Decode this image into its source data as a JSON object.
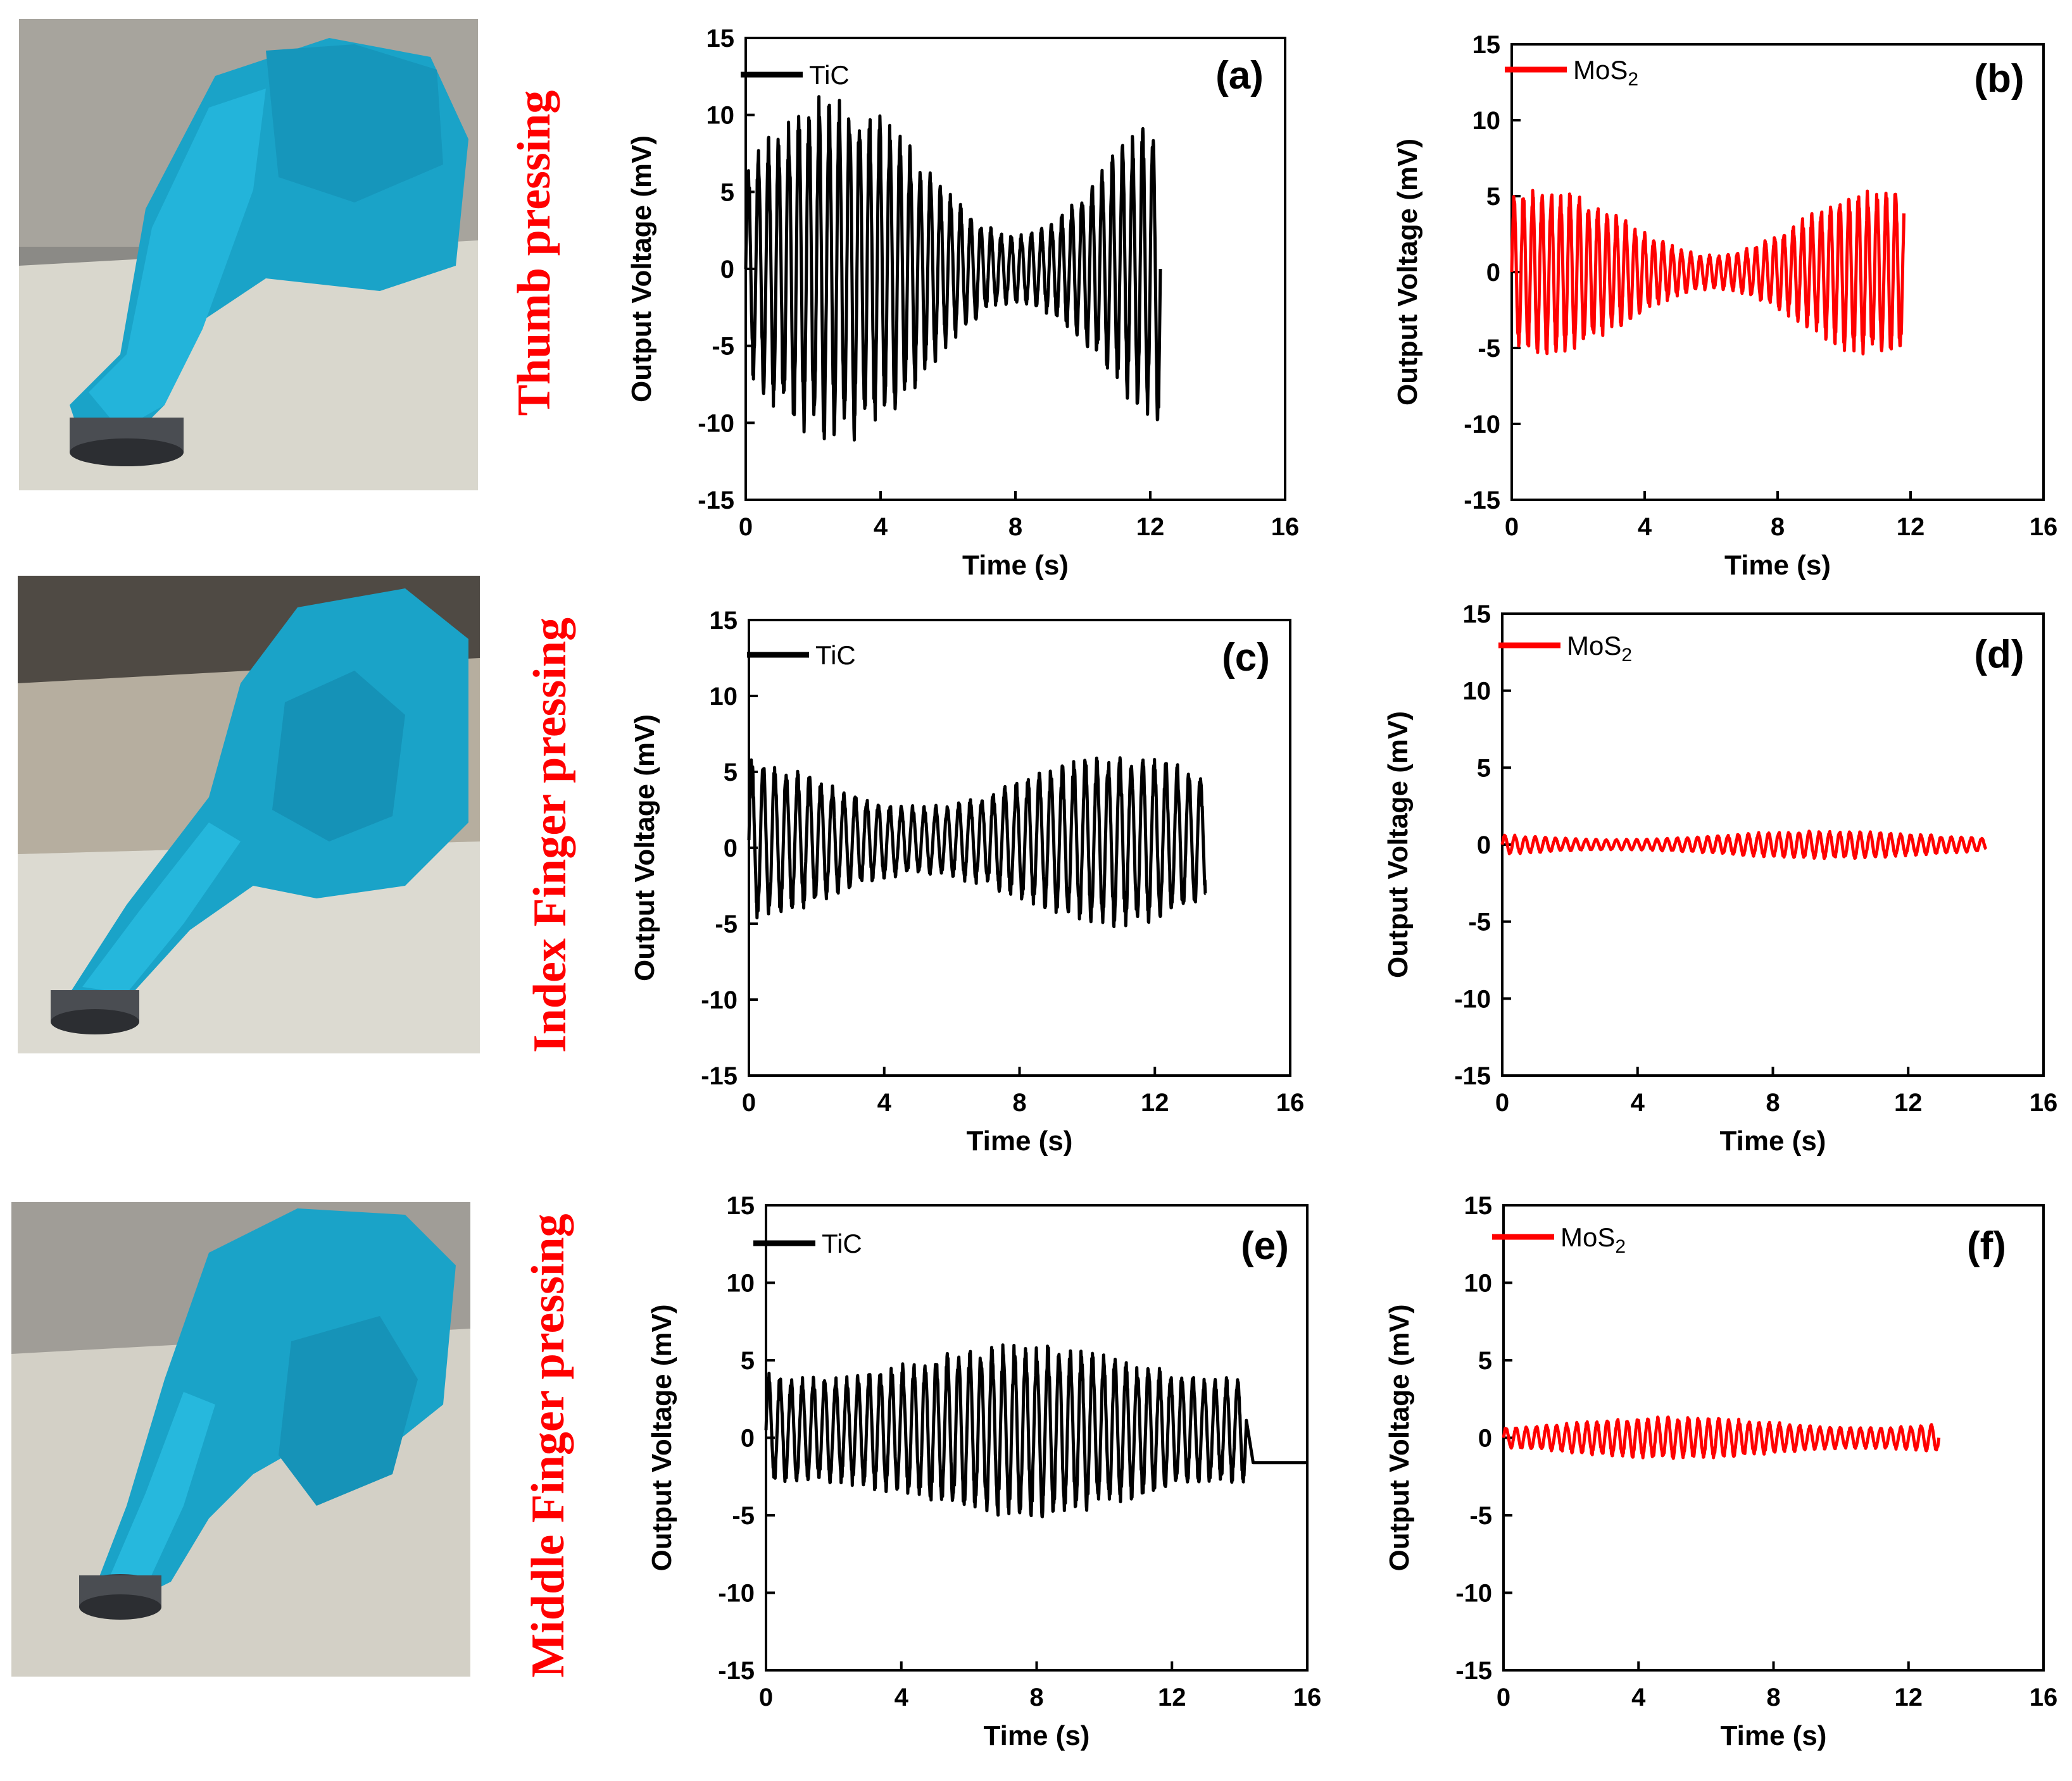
{
  "rows": [
    {
      "label": "Thumb pressing"
    },
    {
      "label": "Index Finger pressing"
    },
    {
      "label": "Middle Finger pressing"
    }
  ],
  "colors": {
    "tic": "#000000",
    "mos2": "#ff0000",
    "row_label": "#ff0000"
  },
  "chart_data": [
    {
      "type": "line",
      "panel": "(a)",
      "xlabel": "Time (s)",
      "ylabel": "Output Voltage (mV)",
      "xlim": [
        0,
        16
      ],
      "ylim": [
        -15,
        15
      ],
      "xticks": [
        0,
        4,
        8,
        12,
        16
      ],
      "yticks": [
        -15,
        -10,
        -5,
        0,
        5,
        10,
        15
      ],
      "series": [
        {
          "name": "TiC",
          "color": "#000000",
          "t_start": 0.0,
          "t_end": 12.3,
          "period": 0.3,
          "amp_min": 2,
          "amp_max": 10,
          "offset": 0
        }
      ],
      "legend": "top-left"
    },
    {
      "type": "line",
      "panel": "(b)",
      "xlabel": "Time (s)",
      "ylabel": "Output Voltage (mV)",
      "xlim": [
        0,
        16
      ],
      "ylim": [
        -15,
        15
      ],
      "xticks": [
        0,
        4,
        8,
        12,
        16
      ],
      "yticks": [
        -15,
        -10,
        -5,
        0,
        5,
        10,
        15
      ],
      "series": [
        {
          "name": "MoS2",
          "color": "#ff0000",
          "t_start": 0.0,
          "t_end": 11.8,
          "period": 0.28,
          "amp_min": 1,
          "amp_max": 5,
          "offset": 0
        }
      ],
      "legend": "top-left"
    },
    {
      "type": "line",
      "panel": "(c)",
      "xlabel": "Time (s)",
      "ylabel": "Output Voltage (mV)",
      "xlim": [
        0,
        16
      ],
      "ylim": [
        -15,
        15
      ],
      "xticks": [
        0,
        4,
        8,
        12,
        16
      ],
      "yticks": [
        -15,
        -10,
        -5,
        0,
        5,
        10,
        15
      ],
      "series": [
        {
          "name": "TiC",
          "color": "#000000",
          "t_start": 0.0,
          "t_end": 13.5,
          "period": 0.34,
          "amp_min": 2,
          "amp_max": 5,
          "offset": 0.5
        }
      ],
      "legend": "top-left"
    },
    {
      "type": "line",
      "panel": "(d)",
      "xlabel": "Time (s)",
      "ylabel": "Output Voltage (mV)",
      "xlim": [
        0,
        16
      ],
      "ylim": [
        -15,
        15
      ],
      "xticks": [
        0,
        4,
        8,
        12,
        16
      ],
      "yticks": [
        -15,
        -10,
        -5,
        0,
        5,
        10,
        15
      ],
      "series": [
        {
          "name": "MoS2",
          "color": "#ff0000",
          "t_start": 0.0,
          "t_end": 14.3,
          "period": 0.3,
          "amp_min": 0.3,
          "amp_max": 0.8,
          "offset": 0
        }
      ],
      "legend": "top-left"
    },
    {
      "type": "line",
      "panel": "(e)",
      "xlabel": "Time (s)",
      "ylabel": "Output Voltage (mV)",
      "xlim": [
        0,
        16
      ],
      "ylim": [
        -15,
        15
      ],
      "xticks": [
        0,
        4,
        8,
        12,
        16
      ],
      "yticks": [
        -15,
        -10,
        -5,
        0,
        5,
        10,
        15
      ],
      "series": [
        {
          "name": "TiC",
          "color": "#000000",
          "t_start": 0.0,
          "t_end": 14.2,
          "period": 0.33,
          "amp_min": 3,
          "amp_max": 5,
          "offset": 0.5,
          "tail_value": -1.6,
          "tail_end": 16
        }
      ],
      "legend": "top-left"
    },
    {
      "type": "line",
      "panel": "(f)",
      "xlabel": "Time (s)",
      "ylabel": "Output Voltage (mV)",
      "xlim": [
        0,
        16
      ],
      "ylim": [
        -15,
        15
      ],
      "xticks": [
        0,
        4,
        8,
        12,
        16
      ],
      "yticks": [
        -15,
        -10,
        -5,
        0,
        5,
        10,
        15
      ],
      "series": [
        {
          "name": "MoS2",
          "color": "#ff0000",
          "t_start": 0.0,
          "t_end": 12.9,
          "period": 0.3,
          "amp_min": 0.6,
          "amp_max": 1.2,
          "offset": 0
        }
      ],
      "legend": "top-left"
    }
  ]
}
